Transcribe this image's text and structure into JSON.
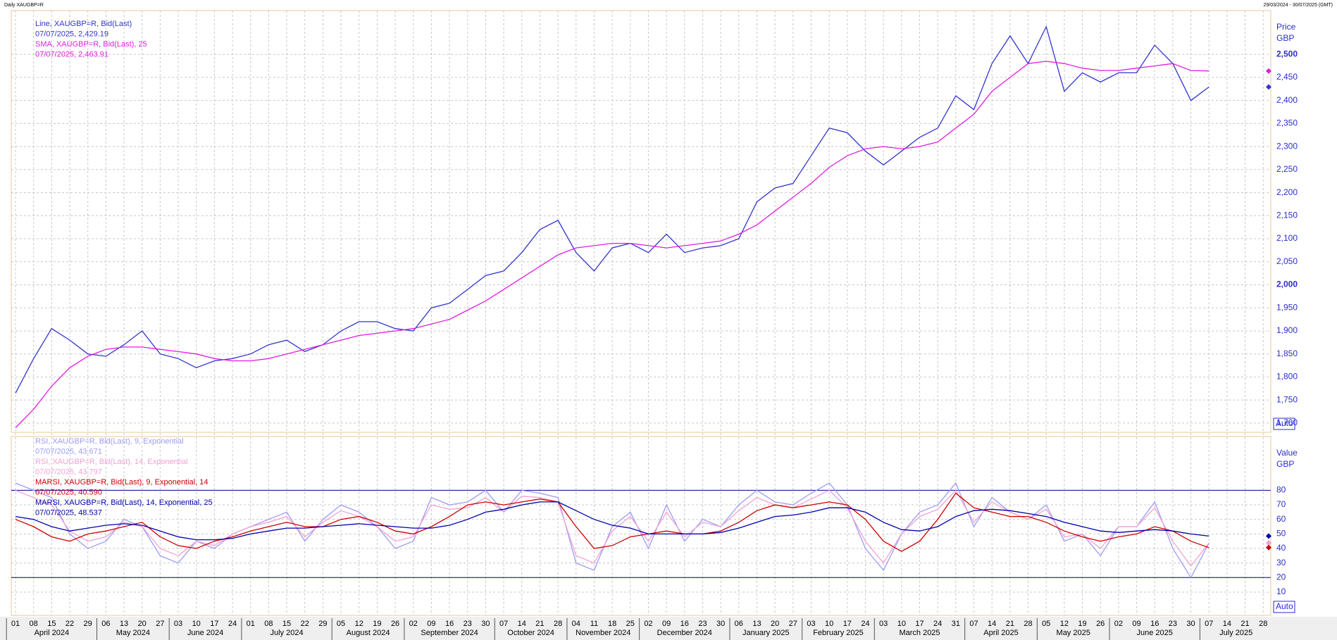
{
  "header": {
    "title": "Daily XAUGBP=R",
    "range": "29/03/2024 - 30/07/2025 (GMT)"
  },
  "chart_data": [
    {
      "type": "line",
      "categories": [
        "01",
        "08",
        "15",
        "22",
        "29",
        "06",
        "13",
        "20",
        "27",
        "03",
        "10",
        "17",
        "24",
        "01",
        "08",
        "15",
        "22",
        "29",
        "05",
        "12",
        "19",
        "26",
        "02",
        "09",
        "16",
        "23",
        "30",
        "07",
        "14",
        "21",
        "28",
        "04",
        "11",
        "18",
        "25",
        "02",
        "09",
        "16",
        "23",
        "30",
        "06",
        "13",
        "20",
        "27",
        "03",
        "10",
        "17",
        "24",
        "03",
        "10",
        "17",
        "24",
        "31",
        "07",
        "14",
        "21",
        "28",
        "05",
        "12",
        "19",
        "26",
        "02",
        "09",
        "16",
        "23",
        "30",
        "07",
        "14",
        "21",
        "28"
      ],
      "months": [
        "April 2024",
        "May 2024",
        "June 2024",
        "July 2024",
        "August 2024",
        "September 2024",
        "October 2024",
        "November 2024",
        "December 2024",
        "January 2025",
        "February 2025",
        "March 2025",
        "April 2025",
        "May 2025",
        "June 2025",
        "July 2025"
      ],
      "ylabel": "Price",
      "yunit": "GBP",
      "scale_mode": "Auto",
      "ylim": [
        1680,
        2595
      ],
      "yticks": [
        {
          "value": 1700,
          "label": "1,700"
        },
        {
          "value": 1750,
          "label": "1,750"
        },
        {
          "value": 1800,
          "label": "1,800"
        },
        {
          "value": 1850,
          "label": "1,850"
        },
        {
          "value": 1900,
          "label": "1,900"
        },
        {
          "value": 1950,
          "label": "1,950"
        },
        {
          "value": 2000,
          "label": "2,000"
        },
        {
          "value": 2050,
          "label": "2,050"
        },
        {
          "value": 2100,
          "label": "2,100"
        },
        {
          "value": 2150,
          "label": "2,150"
        },
        {
          "value": 2200,
          "label": "2,200"
        },
        {
          "value": 2250,
          "label": "2,250"
        },
        {
          "value": 2300,
          "label": "2,300"
        },
        {
          "value": 2350,
          "label": "2,350"
        },
        {
          "value": 2400,
          "label": "2,400"
        },
        {
          "value": 2450,
          "label": "2,450"
        },
        {
          "value": 2500,
          "label": "2,500"
        }
      ],
      "grid": true,
      "series": [
        {
          "name": "Line, XAUGBP=R, Bid(Last)",
          "last_label": "07/07/2025, 2,429.19",
          "color": "#3434d0",
          "values": [
            1765,
            1840,
            1905,
            1880,
            1850,
            1845,
            1870,
            1900,
            1850,
            1840,
            1820,
            1835,
            1840,
            1850,
            1870,
            1880,
            1855,
            1870,
            1900,
            1920,
            1920,
            1905,
            1900,
            1950,
            1960,
            1990,
            2020,
            2030,
            2070,
            2120,
            2140,
            2070,
            2030,
            2080,
            2090,
            2070,
            2110,
            2070,
            2080,
            2085,
            2100,
            2180,
            2210,
            2220,
            2280,
            2340,
            2330,
            2290,
            2260,
            2290,
            2320,
            2340,
            2410,
            2380,
            2480,
            2540,
            2480,
            2560,
            2420,
            2460,
            2440,
            2460,
            2460,
            2520,
            2480,
            2400,
            2429.19,
            null,
            null,
            null
          ]
        },
        {
          "name": "SMA, XAUGBP=R, Bid(Last),  25",
          "last_label": "07/07/2025, 2,463.91",
          "color": "#e01ee0",
          "values": [
            1690,
            1730,
            1780,
            1820,
            1845,
            1860,
            1865,
            1865,
            1860,
            1855,
            1850,
            1840,
            1835,
            1835,
            1840,
            1850,
            1860,
            1870,
            1880,
            1890,
            1895,
            1900,
            1905,
            1915,
            1925,
            1945,
            1965,
            1990,
            2015,
            2040,
            2065,
            2080,
            2085,
            2090,
            2090,
            2085,
            2080,
            2085,
            2090,
            2095,
            2110,
            2130,
            2160,
            2190,
            2220,
            2255,
            2280,
            2295,
            2300,
            2295,
            2300,
            2310,
            2340,
            2370,
            2420,
            2450,
            2480,
            2485,
            2480,
            2470,
            2465,
            2465,
            2470,
            2475,
            2480,
            2465,
            2463.91,
            null,
            null,
            null
          ]
        }
      ]
    },
    {
      "type": "line",
      "ylabel": "Value",
      "yunit": "GBP",
      "scale_mode": "Auto",
      "ylim": [
        -6,
        117
      ],
      "yticks": [
        10,
        20,
        30,
        40,
        50,
        60,
        70,
        80
      ],
      "levels": [
        20,
        80
      ],
      "grid": true,
      "series": [
        {
          "name": "RSI, XAUGBP=R, Bid(Last),  9, Exponential",
          "last_label": "07/07/2025, 43.671",
          "color": "#9c9cf2",
          "values": [
            85,
            80,
            75,
            50,
            40,
            45,
            60,
            55,
            35,
            30,
            45,
            40,
            50,
            55,
            60,
            65,
            45,
            60,
            70,
            65,
            55,
            40,
            45,
            75,
            70,
            72,
            80,
            65,
            80,
            78,
            75,
            30,
            25,
            55,
            65,
            40,
            70,
            45,
            60,
            55,
            70,
            80,
            72,
            70,
            78,
            85,
            70,
            40,
            25,
            50,
            65,
            70,
            85,
            55,
            75,
            65,
            60,
            70,
            45,
            50,
            35,
            55,
            55,
            72,
            40,
            20,
            43.671,
            null,
            null,
            null
          ]
        },
        {
          "name": "RSI, XAUGBP=R, Bid(Last),  14, Exponential",
          "last_label": "07/07/2025, 43.797",
          "color": "#f2a2d4",
          "values": [
            80,
            75,
            70,
            52,
            45,
            48,
            58,
            55,
            40,
            35,
            45,
            42,
            50,
            55,
            58,
            62,
            48,
            58,
            66,
            62,
            55,
            45,
            48,
            70,
            67,
            68,
            75,
            65,
            76,
            75,
            72,
            35,
            30,
            52,
            62,
            45,
            65,
            48,
            58,
            55,
            66,
            75,
            70,
            68,
            74,
            80,
            68,
            45,
            30,
            50,
            62,
            67,
            80,
            58,
            72,
            65,
            60,
            67,
            48,
            50,
            40,
            55,
            55,
            68,
            45,
            28,
            43.797,
            null,
            null,
            null
          ]
        },
        {
          "name": "MARSI, XAUGBP=R, Bid(Last),  9, Exponential, 14",
          "last_label": "07/07/2025, 40.590",
          "color": "#cc0000",
          "values": [
            60,
            55,
            48,
            45,
            50,
            52,
            55,
            58,
            48,
            42,
            40,
            45,
            48,
            52,
            55,
            58,
            55,
            55,
            60,
            62,
            58,
            52,
            50,
            55,
            62,
            70,
            72,
            70,
            72,
            74,
            72,
            55,
            40,
            42,
            48,
            50,
            52,
            50,
            50,
            52,
            58,
            66,
            70,
            68,
            70,
            72,
            70,
            60,
            45,
            38,
            45,
            60,
            78,
            68,
            65,
            62,
            62,
            58,
            52,
            48,
            45,
            48,
            50,
            55,
            52,
            45,
            40.59,
            null,
            null,
            null
          ]
        },
        {
          "name": "MARSI, XAUGBP=R, Bid(Last),  14, Exponential, 25",
          "last_label": "07/07/2025, 48.537",
          "color": "#0000aa",
          "values": [
            62,
            60,
            55,
            52,
            54,
            56,
            57,
            56,
            52,
            48,
            46,
            46,
            47,
            50,
            52,
            54,
            54,
            55,
            56,
            57,
            56,
            55,
            54,
            54,
            56,
            60,
            65,
            67,
            70,
            72,
            72,
            66,
            60,
            56,
            54,
            50,
            50,
            50,
            50,
            51,
            54,
            58,
            62,
            63,
            65,
            68,
            68,
            65,
            58,
            53,
            52,
            55,
            62,
            66,
            67,
            66,
            64,
            62,
            58,
            55,
            52,
            51,
            52,
            53,
            52,
            50,
            48.537,
            null,
            null,
            null
          ]
        }
      ]
    }
  ]
}
